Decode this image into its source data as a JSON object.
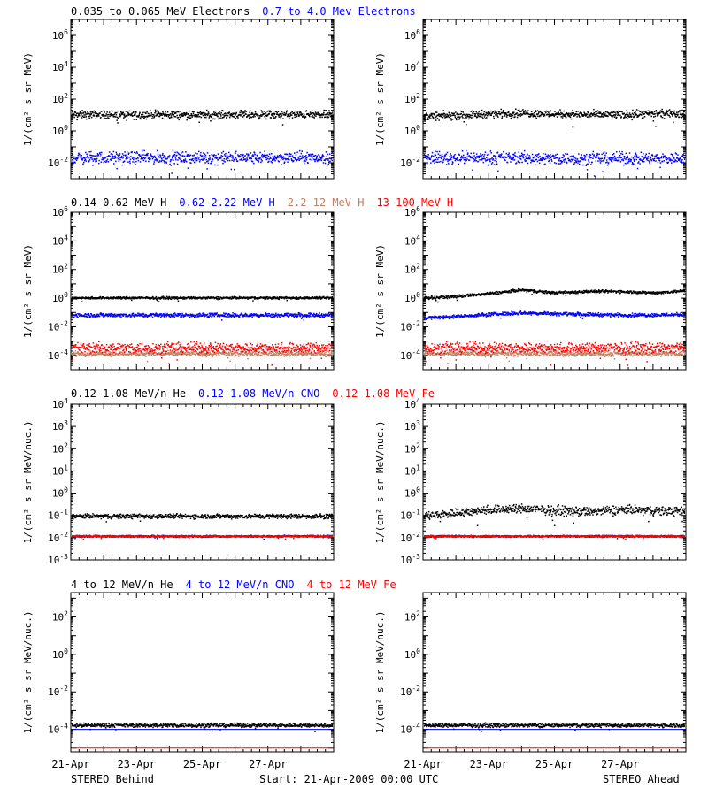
{
  "footer": {
    "left": "STEREO Behind",
    "center": "Start: 21-Apr-2009 00:00 UTC",
    "right": "STEREO Ahead"
  },
  "legends": [
    [
      {
        "text": "0.035 to 0.065 MeV Electrons",
        "color": "#000000"
      },
      {
        "text": "0.7 to 4.0 Mev Electrons",
        "color": "#0000ff"
      }
    ],
    [
      {
        "text": "0.14-0.62 MeV H",
        "color": "#000000"
      },
      {
        "text": "0.62-2.22 MeV H",
        "color": "#0000ff"
      },
      {
        "text": "2.2-12 MeV H",
        "color": "#c08060"
      },
      {
        "text": "13-100 MeV H",
        "color": "#ff0000"
      }
    ],
    [
      {
        "text": "0.12-1.08 MeV/n He",
        "color": "#000000"
      },
      {
        "text": "0.12-1.08 MeV/n CNO",
        "color": "#0000ff"
      },
      {
        "text": "0.12-1.08 MeV Fe",
        "color": "#ff0000"
      }
    ],
    [
      {
        "text": "4 to 12 MeV/n He",
        "color": "#000000"
      },
      {
        "text": "4 to 12 MeV/n CNO",
        "color": "#0000ff"
      },
      {
        "text": "4 to 12 MeV Fe",
        "color": "#ff0000"
      }
    ]
  ],
  "chart_data": [
    {
      "type": "scatter",
      "row": 0,
      "spacecraft": "STEREO Behind",
      "ylabel": "1/(cm² s sr MeV)",
      "yscale": "log",
      "ylim_log10": [
        -3,
        7
      ],
      "yticks_log10": [
        -2,
        0,
        2,
        4,
        6
      ],
      "xlim": [
        "21-Apr",
        "29-Apr"
      ],
      "xticks": [
        "21-Apr",
        "23-Apr",
        "25-Apr",
        "27-Apr"
      ],
      "series": [
        {
          "name": "0.035 to 0.065 MeV Electrons",
          "color": "#000000",
          "y_log10": [
            1.0,
            1.0,
            1.0,
            1.0,
            1.0,
            1.0,
            1.0,
            1.0,
            1.0
          ],
          "noise": 0.12
        },
        {
          "name": "0.7 to 4.0 Mev Electrons",
          "color": "#0000ff",
          "y_log10": [
            -1.7,
            -1.7,
            -1.7,
            -1.7,
            -1.7,
            -1.7,
            -1.7,
            -1.7,
            -1.7
          ],
          "noise": 0.18
        }
      ]
    },
    {
      "type": "scatter",
      "row": 0,
      "spacecraft": "STEREO Ahead",
      "ylabel": "1/(cm² s sr MeV)",
      "yscale": "log",
      "ylim_log10": [
        -3,
        7
      ],
      "yticks_log10": [
        -2,
        0,
        2,
        4,
        6
      ],
      "xlim": [
        "21-Apr",
        "29-Apr"
      ],
      "xticks": [
        "21-Apr",
        "23-Apr",
        "25-Apr",
        "27-Apr"
      ],
      "series": [
        {
          "name": "0.035 to 0.065 MeV Electrons",
          "color": "#000000",
          "y_log10": [
            0.9,
            0.95,
            1.05,
            1.1,
            1.05,
            1.0,
            1.0,
            1.05,
            1.05
          ],
          "noise": 0.12
        },
        {
          "name": "0.7 to 4.0 Mev Electrons",
          "color": "#0000ff",
          "y_log10": [
            -1.7,
            -1.7,
            -1.7,
            -1.7,
            -1.75,
            -1.75,
            -1.75,
            -1.75,
            -1.75
          ],
          "noise": 0.18
        }
      ]
    },
    {
      "type": "scatter",
      "row": 1,
      "spacecraft": "STEREO Behind",
      "ylabel": "1/(cm² s sr MeV)",
      "yscale": "log",
      "ylim_log10": [
        -5,
        6
      ],
      "yticks_log10": [
        -4,
        -2,
        0,
        2,
        4,
        6
      ],
      "xlim": [
        "21-Apr",
        "29-Apr"
      ],
      "xticks": [
        "21-Apr",
        "23-Apr",
        "25-Apr",
        "27-Apr"
      ],
      "series": [
        {
          "name": "0.14-0.62 MeV H",
          "color": "#000000",
          "y_log10": [
            0.0,
            0.0,
            0.0,
            0.0,
            0.0,
            0.0,
            0.0,
            0.0,
            0.0
          ],
          "noise": 0.04
        },
        {
          "name": "0.62-2.22 MeV H",
          "color": "#0000ff",
          "y_log10": [
            -1.2,
            -1.2,
            -1.2,
            -1.2,
            -1.2,
            -1.2,
            -1.2,
            -1.2,
            -1.2
          ],
          "noise": 0.07
        },
        {
          "name": "2.2-12 MeV H",
          "color": "#c08060",
          "y_log10": [
            -3.9,
            -3.9,
            -3.9,
            -3.9,
            -3.9,
            -3.9,
            -3.9,
            -3.9,
            -3.9
          ],
          "noise": 0.08
        },
        {
          "name": "13-100 MeV H",
          "color": "#ff0000",
          "y_log10": [
            -3.5,
            -3.5,
            -3.5,
            -3.5,
            -3.5,
            -3.5,
            -3.5,
            -3.5,
            -3.5
          ],
          "noise": 0.18
        }
      ]
    },
    {
      "type": "scatter",
      "row": 1,
      "spacecraft": "STEREO Ahead",
      "ylabel": "1/(cm² s sr MeV)",
      "yscale": "log",
      "ylim_log10": [
        -5,
        6
      ],
      "yticks_log10": [
        -4,
        -2,
        0,
        2,
        4,
        6
      ],
      "xlim": [
        "21-Apr",
        "29-Apr"
      ],
      "xticks": [
        "21-Apr",
        "23-Apr",
        "25-Apr",
        "27-Apr"
      ],
      "series": [
        {
          "name": "0.14-0.62 MeV H",
          "color": "#000000",
          "y_log10": [
            0.0,
            0.1,
            0.3,
            0.55,
            0.35,
            0.45,
            0.45,
            0.35,
            0.5
          ],
          "noise": 0.05
        },
        {
          "name": "0.62-2.22 MeV H",
          "color": "#0000ff",
          "y_log10": [
            -1.4,
            -1.3,
            -1.15,
            -1.05,
            -1.1,
            -1.15,
            -1.2,
            -1.2,
            -1.15
          ],
          "noise": 0.06
        },
        {
          "name": "2.2-12 MeV H",
          "color": "#c08060",
          "y_log10": [
            -3.9,
            -3.9,
            -3.9,
            -3.9,
            -3.9,
            -3.9,
            -3.9,
            -3.9,
            -3.9
          ],
          "noise": 0.08
        },
        {
          "name": "13-100 MeV H",
          "color": "#ff0000",
          "y_log10": [
            -3.5,
            -3.5,
            -3.5,
            -3.5,
            -3.5,
            -3.5,
            -3.5,
            -3.5,
            -3.5
          ],
          "noise": 0.18
        }
      ]
    },
    {
      "type": "scatter",
      "row": 2,
      "spacecraft": "STEREO Behind",
      "ylabel": "1/(cm² s sr MeV/nuc.)",
      "yscale": "log",
      "ylim_log10": [
        -3,
        4
      ],
      "yticks_log10": [
        -3,
        -2,
        -1,
        0,
        1,
        2,
        3,
        4
      ],
      "xlim": [
        "21-Apr",
        "29-Apr"
      ],
      "xticks": [
        "21-Apr",
        "23-Apr",
        "25-Apr",
        "27-Apr"
      ],
      "series": [
        {
          "name": "0.12-1.08 MeV/n He",
          "color": "#000000",
          "y_log10": [
            -1.05,
            -1.05,
            -1.05,
            -1.05,
            -1.05,
            -1.05,
            -1.05,
            -1.05,
            -1.05
          ],
          "noise": 0.05
        },
        {
          "name": "0.12-1.08 MeV/n CNO",
          "color": "#0000ff",
          "y_log10": [
            -1.95,
            -1.95,
            -1.95,
            -1.95,
            -1.95,
            -1.95,
            -1.95,
            -1.95,
            -1.95
          ],
          "noise": 0.02
        },
        {
          "name": "0.12-1.08 MeV Fe",
          "color": "#ff0000",
          "y_log10": [
            -1.95,
            -1.95,
            -1.95,
            -1.95,
            -1.95,
            -1.95,
            -1.95,
            -1.95,
            -1.95
          ],
          "noise": 0.02
        }
      ]
    },
    {
      "type": "scatter",
      "row": 2,
      "spacecraft": "STEREO Ahead",
      "ylabel": "1/(cm² s sr MeV/nuc.)",
      "yscale": "log",
      "ylim_log10": [
        -3,
        4
      ],
      "yticks_log10": [
        -3,
        -2,
        -1,
        0,
        1,
        2,
        3,
        4
      ],
      "xlim": [
        "21-Apr",
        "29-Apr"
      ],
      "xticks": [
        "21-Apr",
        "23-Apr",
        "25-Apr",
        "27-Apr"
      ],
      "series": [
        {
          "name": "0.12-1.08 MeV/n He",
          "color": "#000000",
          "y_log10": [
            -1.05,
            -0.9,
            -0.75,
            -0.7,
            -0.8,
            -0.85,
            -0.75,
            -0.8,
            -0.85
          ],
          "noise": 0.1
        },
        {
          "name": "0.12-1.08 MeV/n CNO",
          "color": "#0000ff",
          "y_log10": [
            -1.95,
            -1.95,
            -1.95,
            -1.95,
            -1.95,
            -1.95,
            -1.95,
            -1.95,
            -1.95
          ],
          "noise": 0.02
        },
        {
          "name": "0.12-1.08 MeV Fe",
          "color": "#ff0000",
          "y_log10": [
            -1.95,
            -1.95,
            -1.95,
            -1.95,
            -1.95,
            -1.95,
            -1.95,
            -1.95,
            -1.95
          ],
          "noise": 0.02
        }
      ]
    },
    {
      "type": "scatter",
      "row": 3,
      "spacecraft": "STEREO Behind",
      "ylabel": "1/(cm² s sr MeV/nuc.)",
      "yscale": "log",
      "ylim_log10": [
        -5.2,
        3.3
      ],
      "yticks_log10": [
        -4,
        -2,
        0,
        2
      ],
      "xlim": [
        "21-Apr",
        "29-Apr"
      ],
      "xticks": [
        "21-Apr",
        "23-Apr",
        "25-Apr",
        "27-Apr"
      ],
      "series": [
        {
          "name": "4 to 12 MeV/n He",
          "color": "#000000",
          "y_log10": [
            -3.8,
            -3.8,
            -3.8,
            -3.8,
            -3.8,
            -3.8,
            -3.8,
            -3.8,
            -3.8
          ],
          "noise": 0.05
        },
        {
          "name": "4 to 12 MeV/n CNO",
          "color": "#0000ff",
          "y_log10": [
            -4.0,
            -4.0,
            -4.0,
            -4.0,
            -4.0,
            -4.0,
            -4.0,
            -4.0,
            -4.0
          ],
          "noise": 0.0
        },
        {
          "name": "4 to 12 MeV Fe",
          "color": "#ff0000",
          "y_log10": [
            -5.0,
            -5.0,
            -5.0,
            -5.0,
            -5.0,
            -5.0,
            -5.0,
            -5.0,
            -5.0
          ],
          "noise": 0.0
        }
      ]
    },
    {
      "type": "scatter",
      "row": 3,
      "spacecraft": "STEREO Ahead",
      "ylabel": "1/(cm² s sr MeV/nuc.)",
      "yscale": "log",
      "ylim_log10": [
        -5.2,
        3.3
      ],
      "yticks_log10": [
        -4,
        -2,
        0,
        2
      ],
      "xlim": [
        "21-Apr",
        "29-Apr"
      ],
      "xticks": [
        "21-Apr",
        "23-Apr",
        "25-Apr",
        "27-Apr"
      ],
      "series": [
        {
          "name": "4 to 12 MeV/n He",
          "color": "#000000",
          "y_log10": [
            -3.8,
            -3.8,
            -3.8,
            -3.8,
            -3.8,
            -3.8,
            -3.8,
            -3.8,
            -3.8
          ],
          "noise": 0.05
        },
        {
          "name": "4 to 12 MeV/n CNO",
          "color": "#0000ff",
          "y_log10": [
            -4.0,
            -4.0,
            -4.0,
            -4.0,
            -4.0,
            -4.0,
            -4.0,
            -4.0,
            -4.0
          ],
          "noise": 0.0
        },
        {
          "name": "4 to 12 MeV Fe",
          "color": "#ff0000",
          "y_log10": [
            -5.0,
            -5.0,
            -5.0,
            -5.0,
            -5.0,
            -5.0,
            -5.0,
            -5.0,
            -5.0
          ],
          "noise": 0.0
        }
      ]
    }
  ]
}
